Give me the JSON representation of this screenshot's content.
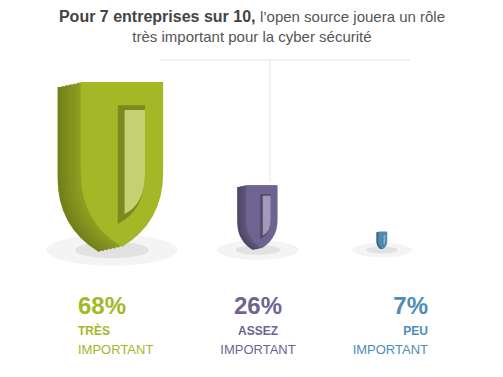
{
  "chart_data": {
    "type": "bar",
    "title": "Pour 7 entreprises sur 10, l’open source jouera un rôle très important pour la cyber sécurité",
    "categories": [
      "TRÈS IMPORTANT",
      "ASSEZ IMPORTANT",
      "PEU IMPORTANT"
    ],
    "values": [
      68,
      26,
      7
    ],
    "value_labels": [
      "68%",
      "26%",
      "7%"
    ],
    "colors": [
      "#a4b827",
      "#6f6491",
      "#4e8db5"
    ],
    "data_labels": true,
    "tick_labels": false
  }
}
